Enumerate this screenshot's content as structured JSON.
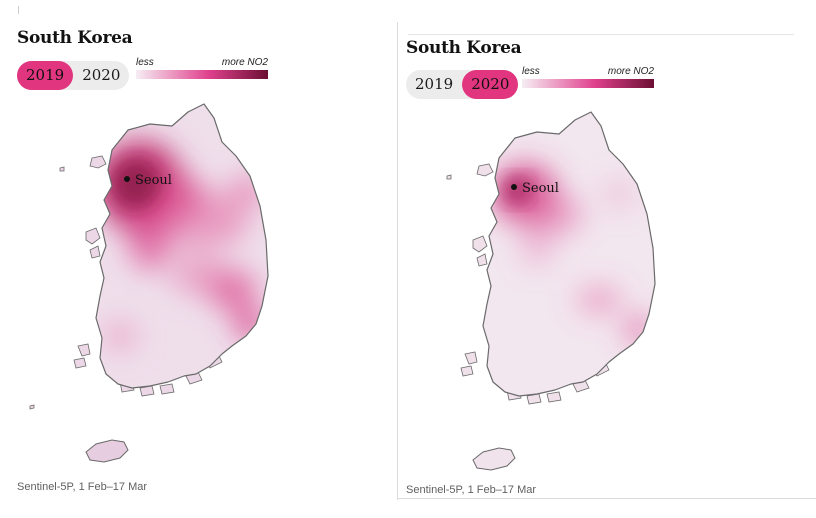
{
  "colors": {
    "accent": "#e2357f",
    "legend_low": "#f5ecf2",
    "legend_mid": "#e0418d",
    "legend_high": "#6b0f33",
    "land_base": "#f0e1ec",
    "outline": "#6a6a6a"
  },
  "panels": [
    {
      "title": "South Korea",
      "years": [
        "2019",
        "2020"
      ],
      "selected_year": "2019",
      "legend": {
        "less_label": "less",
        "more_label": "more NO2"
      },
      "city": "Seoul",
      "caption": "Sentinel-5P, 1 Feb–17 Mar"
    },
    {
      "title": "South Korea",
      "years": [
        "2019",
        "2020"
      ],
      "selected_year": "2020",
      "legend": {
        "less_label": "less",
        "more_label": "more NO2"
      },
      "city": "Seoul",
      "caption": "Sentinel-5P, 1 Feb–17 Mar"
    }
  ]
}
